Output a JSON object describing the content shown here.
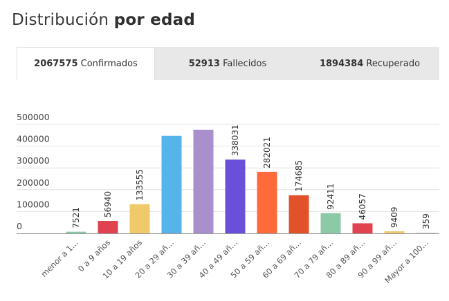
{
  "header": {
    "title_light": "Distribución",
    "title_bold": "por edad"
  },
  "tabs": [
    {
      "value": "2067575",
      "label": "Confirmados",
      "active": true
    },
    {
      "value": "52913",
      "label": "Fallecidos",
      "active": false
    },
    {
      "value": "1894384",
      "label": "Recuperado",
      "active": false
    }
  ],
  "chart_data": {
    "type": "bar",
    "categories": [
      "menor a 1…",
      "0 a 9 años",
      "10 a 19 años",
      "20 a 29 añ…",
      "30 a 39 añ…",
      "40 a 49 añ…",
      "50 a 59 añ…",
      "60 a 69 añ…",
      "70 a 79 añ…",
      "80 a 89 añ…",
      "90 a 99 añ…",
      "Mayor a 100…"
    ],
    "values": [
      7521,
      56940,
      133555,
      447000,
      475000,
      338031,
      282021,
      174685,
      92411,
      46057,
      9409,
      359
    ],
    "data_labels": [
      "7521",
      "56940",
      "133555",
      "",
      "",
      "338031",
      "282021",
      "174685",
      "92411",
      "46057",
      "9409",
      "359"
    ],
    "colors": [
      "#8cc9a6",
      "#e0434f",
      "#f0c96a",
      "#56b4e9",
      "#a98fcc",
      "#6a4fd9",
      "#ff6a3a",
      "#e2522a",
      "#8cc9a6",
      "#e0434f",
      "#f0c96a",
      "#cccccc"
    ],
    "y_ticks": [
      "0",
      "100000",
      "200000",
      "300000",
      "400000",
      "500000"
    ],
    "ylim": [
      0,
      500000
    ],
    "grid": true
  }
}
